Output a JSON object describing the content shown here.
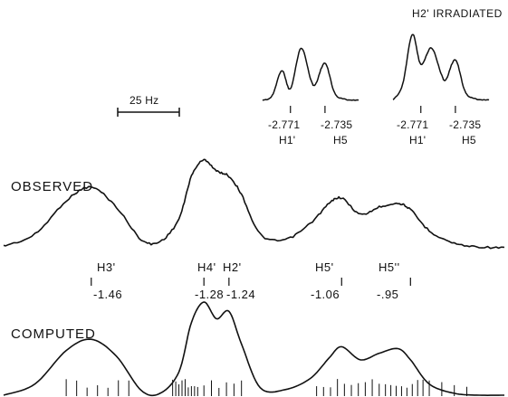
{
  "chart_data": [
    {
      "type": "line",
      "title": "",
      "scale_bar_label": "25 Hz",
      "observed_label": "OBSERVED",
      "computed_label": "COMPUTED",
      "peaks": [
        {
          "label": "H3'",
          "value": "-1.46"
        },
        {
          "label": "H4'",
          "value": "-1.28"
        },
        {
          "label": "H2'",
          "value": "-1.24"
        },
        {
          "label": "H5'",
          "value": "-1.06"
        },
        {
          "label": "H5''",
          "value": "-.95"
        }
      ],
      "series": [
        {
          "name": "OBSERVED",
          "x": [
            -1.6,
            -1.55,
            -1.5,
            -1.46,
            -1.42,
            -1.38,
            -1.35,
            -1.32,
            -1.3,
            -1.28,
            -1.26,
            -1.24,
            -1.22,
            -1.19,
            -1.15,
            -1.11,
            -1.08,
            -1.06,
            -1.03,
            -1.0,
            -0.97,
            -0.95,
            -0.92,
            -0.88,
            -0.84,
            -0.8
          ],
          "y": [
            0.05,
            0.18,
            0.55,
            0.7,
            0.48,
            0.12,
            0.1,
            0.35,
            0.82,
            1.0,
            0.88,
            0.82,
            0.62,
            0.18,
            0.12,
            0.3,
            0.52,
            0.58,
            0.4,
            0.48,
            0.52,
            0.45,
            0.22,
            0.08,
            0.04,
            0.03
          ]
        },
        {
          "name": "COMPUTED",
          "x": [
            -1.6,
            -1.55,
            -1.5,
            -1.46,
            -1.42,
            -1.38,
            -1.35,
            -1.32,
            -1.3,
            -1.28,
            -1.26,
            -1.24,
            -1.22,
            -1.19,
            -1.15,
            -1.11,
            -1.08,
            -1.06,
            -1.03,
            -1.0,
            -0.97,
            -0.95,
            -0.92,
            -0.88,
            -0.84,
            -0.8
          ],
          "y": [
            0.0,
            0.12,
            0.48,
            0.6,
            0.42,
            0.05,
            0.02,
            0.25,
            0.78,
            1.0,
            0.82,
            0.9,
            0.55,
            0.08,
            0.06,
            0.18,
            0.4,
            0.52,
            0.38,
            0.45,
            0.5,
            0.38,
            0.12,
            0.02,
            0.0,
            0.0
          ]
        }
      ]
    },
    {
      "type": "line",
      "title": "",
      "ticks": [
        {
          "value": "-2.771",
          "label": "H1'"
        },
        {
          "value": "-2.735",
          "label": "H5"
        }
      ],
      "series": [
        {
          "name": "",
          "x": [
            -2.8,
            -2.79,
            -2.78,
            -2.771,
            -2.76,
            -2.75,
            -2.745,
            -2.735,
            -2.725,
            -2.715,
            -2.7
          ],
          "y": [
            0.02,
            0.1,
            0.55,
            0.22,
            0.95,
            0.4,
            0.3,
            0.68,
            0.15,
            0.04,
            0.02
          ]
        }
      ]
    },
    {
      "type": "line",
      "title": "H2' IRRADIATED",
      "ticks": [
        {
          "value": "-2.771",
          "label": "H1'"
        },
        {
          "value": "-2.735",
          "label": "H5"
        }
      ],
      "series": [
        {
          "name": "",
          "x": [
            -2.8,
            -2.79,
            -2.78,
            -2.771,
            -2.76,
            -2.75,
            -2.745,
            -2.735,
            -2.725,
            -2.715,
            -2.7
          ],
          "y": [
            0.02,
            0.25,
            1.0,
            0.55,
            0.8,
            0.42,
            0.32,
            0.62,
            0.15,
            0.04,
            0.02
          ]
        }
      ]
    }
  ]
}
